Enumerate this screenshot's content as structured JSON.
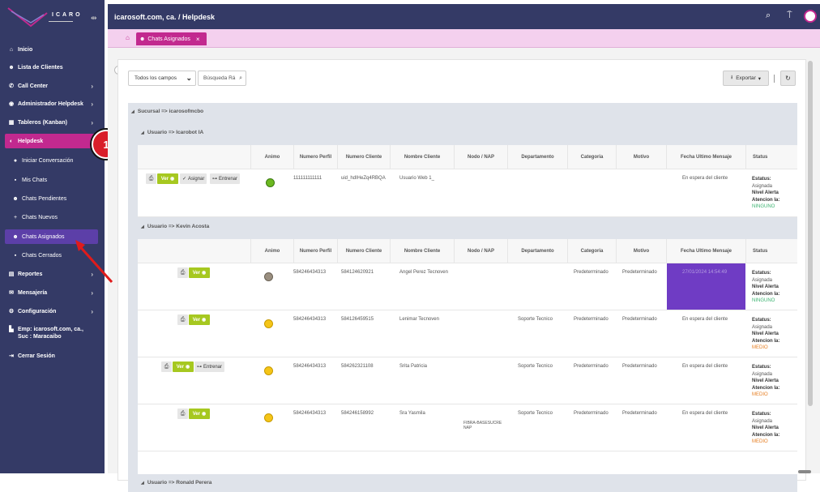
{
  "brand": {
    "name": "ICARO"
  },
  "sidebar": {
    "items": [
      {
        "label": "Inicio",
        "icon": "home-icon"
      },
      {
        "label": "Lista de Clientes",
        "icon": "users-icon"
      },
      {
        "label": "Call Center",
        "icon": "phone-icon"
      },
      {
        "label": "Administrador Helpdesk",
        "icon": "headset-icon"
      },
      {
        "label": "Tableros (Kanban)",
        "icon": "board-icon"
      },
      {
        "label": "Helpdesk",
        "icon": "helpdesk-icon"
      },
      {
        "label": "Iniciar Conversación",
        "icon": "chat-icon"
      },
      {
        "label": "Mis Chats",
        "icon": "chats-icon"
      },
      {
        "label": "Chats Pendientes",
        "icon": "pending-icon"
      },
      {
        "label": "Chats Nuevos",
        "icon": "plus-icon"
      },
      {
        "label": "Chats Asignados",
        "icon": "group-icon"
      },
      {
        "label": "Chats Cerrados",
        "icon": "closed-icon"
      },
      {
        "label": "Reportes",
        "icon": "report-icon"
      },
      {
        "label": "Mensajería",
        "icon": "message-icon"
      },
      {
        "label": "Configuración",
        "icon": "gear-icon"
      },
      {
        "label": "Emp: icarosoft.com, ca., Suc : Maracaibo",
        "icon": "building-icon"
      },
      {
        "label": "Cerrar Sesión",
        "icon": "logout-icon"
      }
    ],
    "badge": "1"
  },
  "header": {
    "title": "icarosoft.com, ca. / Helpdesk"
  },
  "tabs": [
    {
      "label": "Chats Asignados",
      "close": "×"
    }
  ],
  "toolbar": {
    "field_select": "Todos los campos",
    "search_placeholder": "Búsqueda Rá",
    "export_label": "Exportar"
  },
  "groups": {
    "sucursal": "Sucursal => icarosofmcbo",
    "user1": "Usuario => Icarobot IA",
    "user2": "Usuario => Kevin Acosta",
    "user3": "Usuario => Ronald Perera"
  },
  "columns": [
    "Animo",
    "Numero Perfil",
    "Numero Cliente",
    "Nombre Cliente",
    "Nodo / NAP",
    "Departamento",
    "Categoria",
    "Motivo",
    "Fecha Ultimo Mensaje",
    "Status"
  ],
  "actions": {
    "ver": "Ver",
    "asignar": "Asignar",
    "entrenar": "Entrenar"
  },
  "status_labels": {
    "estatus": "Estatus:",
    "nivel": "Nivel Alerta",
    "atencion": "Atencion Ia:"
  },
  "rows": [
    {
      "perfil": "111111111111",
      "cliente": "uid_hdIHeZq4RBQA",
      "nombre": "Usuario Web 1_",
      "nodo": "",
      "depto": "",
      "categoria": "",
      "motivo": "",
      "fecha": "En espera del cliente",
      "estatus": "Asignada",
      "atencion": "NINGUNO",
      "mood": "happy"
    },
    {
      "perfil": "584246434313",
      "cliente": "584124620921",
      "nombre": "Angel Perez Tecnoven",
      "nodo": "",
      "depto": "",
      "categoria": "Predeterminado",
      "motivo": "Predeterminado",
      "fecha": "27/01/2024 14:54:49",
      "estatus": "Asignada",
      "atencion": "NINGUNO",
      "mood": "neutral"
    },
    {
      "perfil": "584246434313",
      "cliente": "584126459515",
      "nombre": "Lenimar Tecnoven",
      "nodo": "",
      "depto": "Soporte Tecnico",
      "categoria": "Predeterminado",
      "motivo": "Predeterminado",
      "fecha": "En espera del cliente",
      "estatus": "Asignada",
      "atencion": "MEDIO",
      "mood": "meh"
    },
    {
      "perfil": "584246434313",
      "cliente": "584262321108",
      "nombre": "Srita Patricia",
      "nodo": "",
      "depto": "Soporte Tecnico",
      "categoria": "Predeterminado",
      "motivo": "Predeterminado",
      "fecha": "En espera del cliente",
      "estatus": "Asignada",
      "atencion": "MEDIO",
      "mood": "meh"
    },
    {
      "perfil": "584246434313",
      "cliente": "584246158992",
      "nombre": "Sra Yasmila",
      "nodo": "FIBRA-BASESUCRE NAP",
      "depto": "Soporte Tecnico",
      "categoria": "Predeterminado",
      "motivo": "Predeterminado",
      "fecha": "En espera del cliente",
      "estatus": "Asignada",
      "atencion": "MEDIO",
      "mood": "meh"
    }
  ],
  "colors": {
    "sidebar": "#343a66",
    "accent": "#c2298f",
    "ver": "#a6c820",
    "highlight": "#6f3cc4"
  }
}
